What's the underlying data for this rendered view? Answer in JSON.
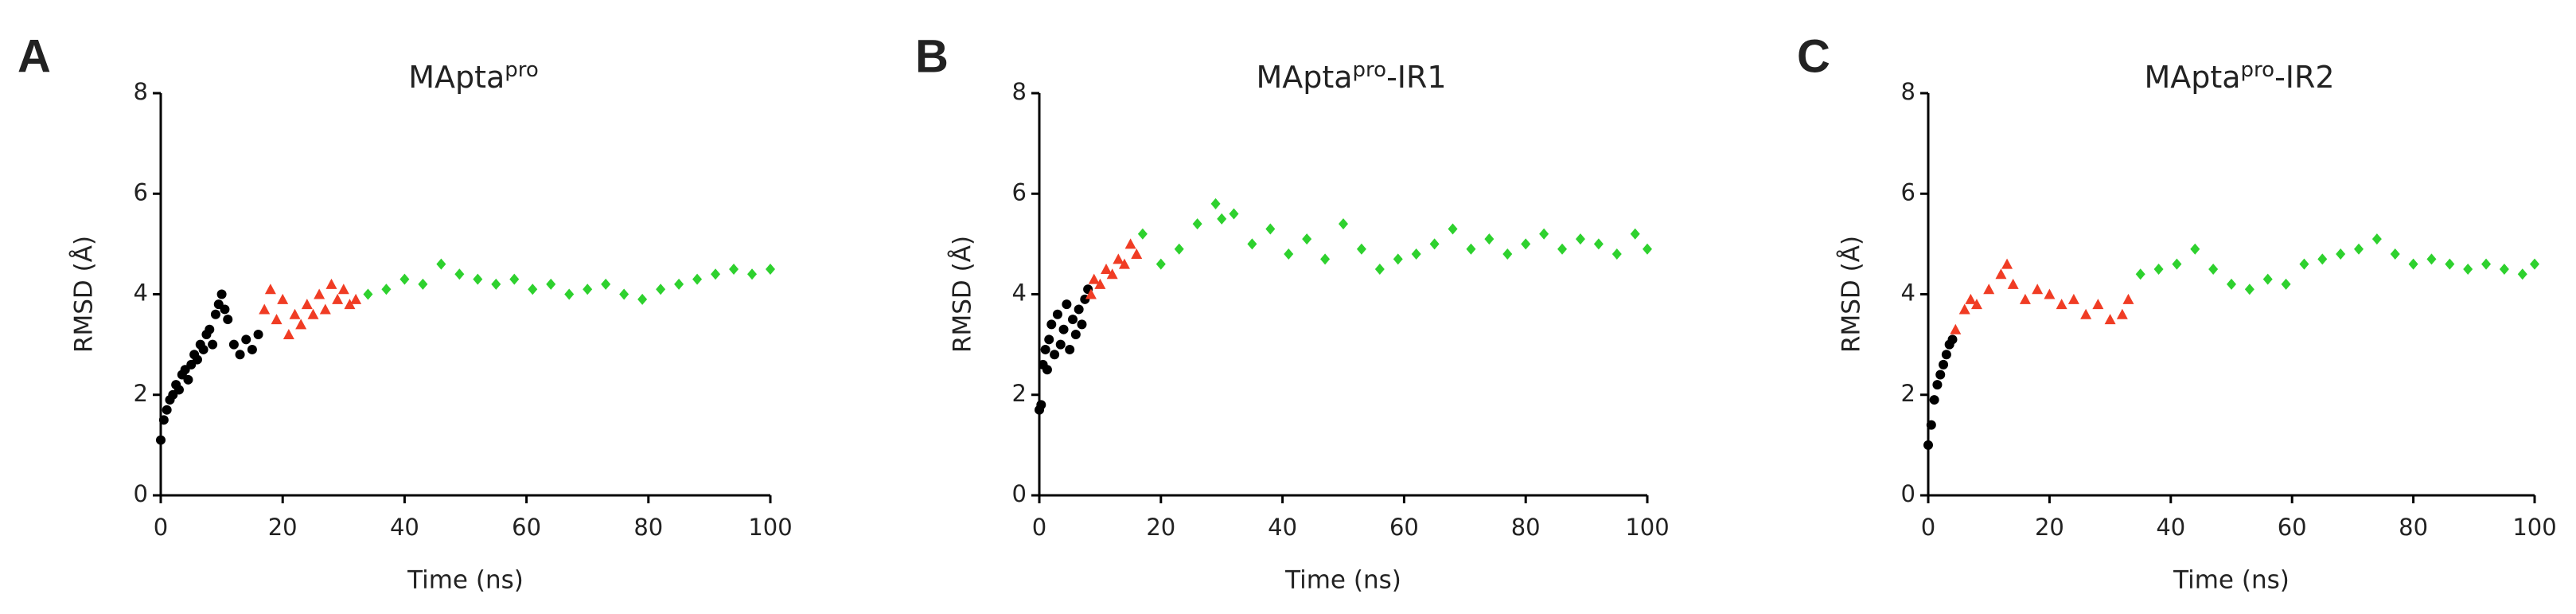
{
  "chart_data": [
    {
      "type": "scatter",
      "panel_label": "A",
      "title_parts": [
        "MApta",
        "pro"
      ],
      "xlabel": "Time (ns)",
      "ylabel": "RMSD (Å)",
      "xlim": [
        0,
        100
      ],
      "ylim": [
        0,
        8
      ],
      "xticks": [
        0,
        20,
        40,
        60,
        80,
        100
      ],
      "yticks": [
        0,
        2,
        4,
        6,
        8
      ],
      "series": [
        {
          "color": "#000000",
          "marker": "circle",
          "x": [
            0,
            0.5,
            1,
            1.5,
            2,
            2.5,
            3,
            3.5,
            4,
            4.5,
            5,
            5.5,
            6,
            6.5,
            7,
            7.5,
            8,
            8.5,
            9,
            9.5,
            10,
            10.5,
            11,
            12,
            13,
            14,
            15,
            16
          ],
          "y": [
            1.1,
            1.5,
            1.7,
            1.9,
            2.0,
            2.2,
            2.1,
            2.4,
            2.5,
            2.3,
            2.6,
            2.8,
            2.7,
            3.0,
            2.9,
            3.2,
            3.3,
            3.0,
            3.6,
            3.8,
            4.0,
            3.7,
            3.5,
            3.0,
            2.8,
            3.1,
            2.9,
            3.2
          ]
        },
        {
          "color": "#f03c24",
          "marker": "triangle",
          "x": [
            17,
            18,
            19,
            20,
            21,
            22,
            23,
            24,
            25,
            26,
            27,
            28,
            29,
            30,
            31,
            32
          ],
          "y": [
            3.7,
            4.1,
            3.5,
            3.9,
            3.2,
            3.6,
            3.4,
            3.8,
            3.6,
            4.0,
            3.7,
            4.2,
            3.9,
            4.1,
            3.8,
            3.9
          ]
        },
        {
          "color": "#2ed12e",
          "marker": "diamond",
          "x": [
            34,
            37,
            40,
            43,
            46,
            49,
            52,
            55,
            58,
            61,
            64,
            67,
            70,
            73,
            76,
            79,
            82,
            85,
            88,
            91,
            94,
            97,
            100
          ],
          "y": [
            4.0,
            4.1,
            4.3,
            4.2,
            4.6,
            4.4,
            4.3,
            4.2,
            4.3,
            4.1,
            4.2,
            4.0,
            4.1,
            4.2,
            4.0,
            3.9,
            4.1,
            4.2,
            4.3,
            4.4,
            4.5,
            4.4,
            4.5
          ]
        }
      ]
    },
    {
      "type": "scatter",
      "panel_label": "B",
      "title_parts": [
        "MApta",
        "pro",
        "-IR1"
      ],
      "xlabel": "Time (ns)",
      "ylabel": "RMSD (Å)",
      "xlim": [
        0,
        100
      ],
      "ylim": [
        0,
        8
      ],
      "xticks": [
        0,
        20,
        40,
        60,
        80,
        100
      ],
      "yticks": [
        0,
        2,
        4,
        6,
        8
      ],
      "series": [
        {
          "color": "#000000",
          "marker": "circle",
          "x": [
            0,
            0.3,
            0.6,
            1,
            1.3,
            1.6,
            2,
            2.5,
            3,
            3.5,
            4,
            4.5,
            5,
            5.5,
            6,
            6.5,
            7,
            7.5,
            8
          ],
          "y": [
            1.7,
            1.8,
            2.6,
            2.9,
            2.5,
            3.1,
            3.4,
            2.8,
            3.6,
            3.0,
            3.3,
            3.8,
            2.9,
            3.5,
            3.2,
            3.7,
            3.4,
            3.9,
            4.1
          ]
        },
        {
          "color": "#f03c24",
          "marker": "triangle",
          "x": [
            8.5,
            9,
            10,
            11,
            12,
            13,
            14,
            15,
            16
          ],
          "y": [
            4.0,
            4.3,
            4.2,
            4.5,
            4.4,
            4.7,
            4.6,
            5.0,
            4.8
          ]
        },
        {
          "color": "#2ed12e",
          "marker": "diamond",
          "x": [
            17,
            20,
            23,
            26,
            29,
            30,
            32,
            35,
            38,
            41,
            44,
            47,
            50,
            53,
            56,
            59,
            62,
            65,
            68,
            71,
            74,
            77,
            80,
            83,
            86,
            89,
            92,
            95,
            98,
            100
          ],
          "y": [
            5.2,
            4.6,
            4.9,
            5.4,
            5.8,
            5.5,
            5.6,
            5.0,
            5.3,
            4.8,
            5.1,
            4.7,
            5.4,
            4.9,
            4.5,
            4.7,
            4.8,
            5.0,
            5.3,
            4.9,
            5.1,
            4.8,
            5.0,
            5.2,
            4.9,
            5.1,
            5.0,
            4.8,
            5.2,
            4.9
          ]
        }
      ]
    },
    {
      "type": "scatter",
      "panel_label": "C",
      "title_parts": [
        "MApta",
        "pro",
        "-IR2"
      ],
      "xlabel": "Time (ns)",
      "ylabel": "RMSD (Å)",
      "xlim": [
        0,
        100
      ],
      "ylim": [
        0,
        8
      ],
      "xticks": [
        0,
        20,
        40,
        60,
        80,
        100
      ],
      "yticks": [
        0,
        2,
        4,
        6,
        8
      ],
      "series": [
        {
          "color": "#000000",
          "marker": "circle",
          "x": [
            0,
            0.5,
            1,
            1.5,
            2,
            2.5,
            3,
            3.5,
            4
          ],
          "y": [
            1.0,
            1.4,
            1.9,
            2.2,
            2.4,
            2.6,
            2.8,
            3.0,
            3.1
          ]
        },
        {
          "color": "#f03c24",
          "marker": "triangle",
          "x": [
            4.5,
            6,
            7,
            8,
            10,
            12,
            13,
            14,
            16,
            18,
            20,
            22,
            24,
            26,
            28,
            30,
            32,
            33
          ],
          "y": [
            3.3,
            3.7,
            3.9,
            3.8,
            4.1,
            4.4,
            4.6,
            4.2,
            3.9,
            4.1,
            4.0,
            3.8,
            3.9,
            3.6,
            3.8,
            3.5,
            3.6,
            3.9
          ]
        },
        {
          "color": "#2ed12e",
          "marker": "diamond",
          "x": [
            35,
            38,
            41,
            44,
            47,
            50,
            53,
            56,
            59,
            62,
            65,
            68,
            71,
            74,
            77,
            80,
            83,
            86,
            89,
            92,
            95,
            98,
            100
          ],
          "y": [
            4.4,
            4.5,
            4.6,
            4.9,
            4.5,
            4.2,
            4.1,
            4.3,
            4.2,
            4.6,
            4.7,
            4.8,
            4.9,
            5.1,
            4.8,
            4.6,
            4.7,
            4.6,
            4.5,
            4.6,
            4.5,
            4.4,
            4.6
          ]
        }
      ]
    }
  ]
}
